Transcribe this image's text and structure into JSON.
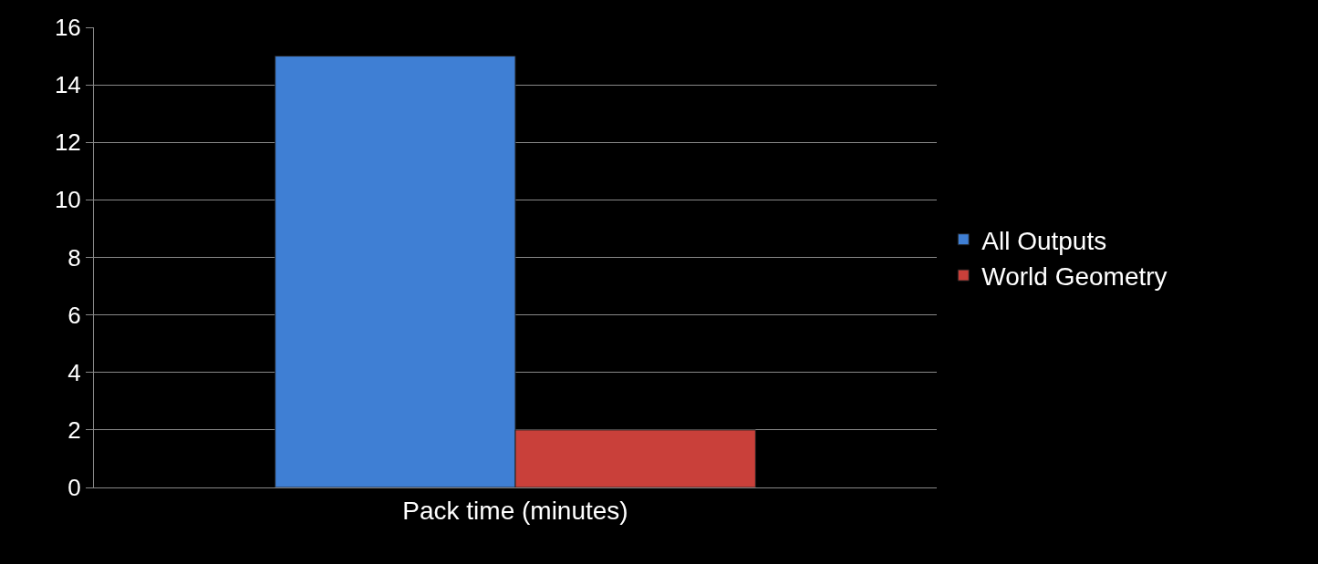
{
  "chart_data": {
    "type": "bar",
    "categories": [
      "Pack time (minutes)"
    ],
    "series": [
      {
        "name": "All Outputs",
        "color": "#3f7fd4",
        "values": [
          15
        ]
      },
      {
        "name": "World Geometry",
        "color": "#c9403a",
        "values": [
          2
        ]
      }
    ],
    "ylim": [
      0,
      16
    ],
    "yticks": [
      0,
      2,
      4,
      6,
      8,
      10,
      12,
      14,
      16
    ],
    "grid": "y",
    "legend": "right"
  }
}
